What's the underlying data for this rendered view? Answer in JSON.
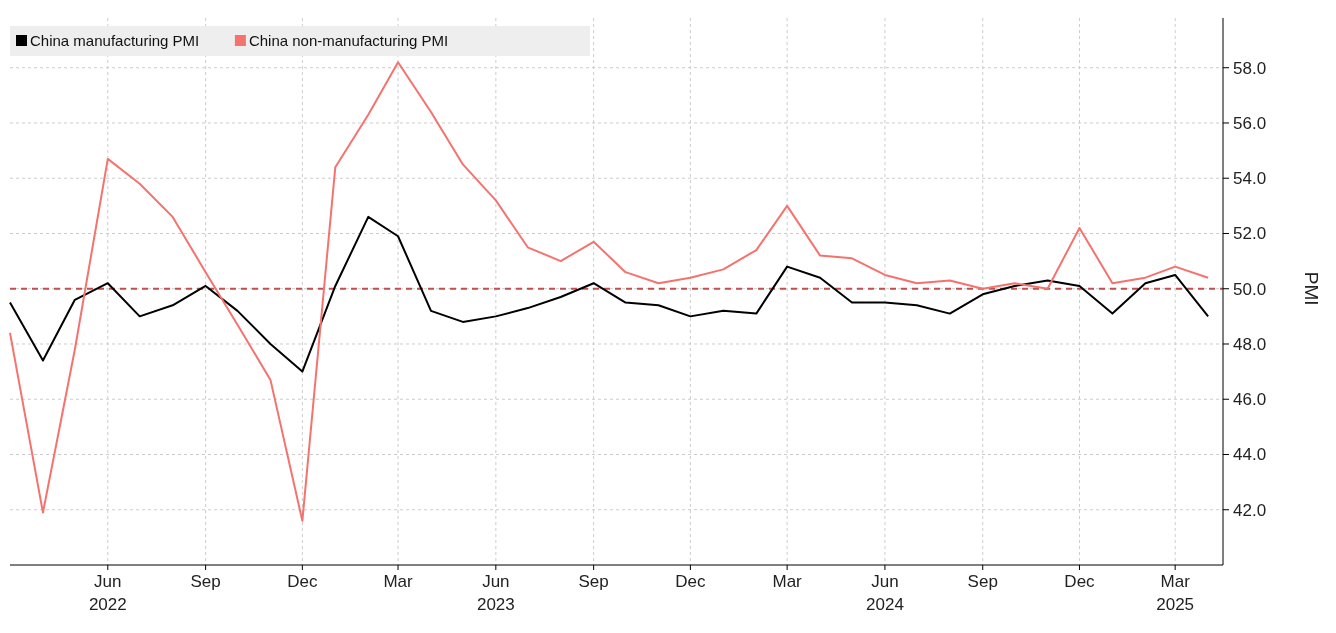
{
  "chart_data": {
    "type": "line",
    "ylabel": "PMI",
    "x": [
      "2022-03",
      "2022-04",
      "2022-05",
      "2022-06",
      "2022-07",
      "2022-08",
      "2022-09",
      "2022-10",
      "2022-11",
      "2022-12",
      "2023-01",
      "2023-02",
      "2023-03",
      "2023-04",
      "2023-05",
      "2023-06",
      "2023-07",
      "2023-08",
      "2023-09",
      "2023-10",
      "2023-11",
      "2023-12",
      "2024-01",
      "2024-02",
      "2024-03",
      "2024-04",
      "2024-05",
      "2024-06",
      "2024-07",
      "2024-08",
      "2024-09",
      "2024-10",
      "2024-11",
      "2024-12",
      "2025-01",
      "2025-02",
      "2025-03",
      "2025-04"
    ],
    "series": [
      {
        "name": "China manufacturing PMI",
        "color": "#000000",
        "values": [
          49.5,
          47.4,
          49.6,
          50.2,
          49.0,
          49.4,
          50.1,
          49.2,
          48.0,
          47.0,
          50.1,
          52.6,
          51.9,
          49.2,
          48.8,
          49.0,
          49.3,
          49.7,
          50.2,
          49.5,
          49.4,
          49.0,
          49.2,
          49.1,
          50.8,
          50.4,
          49.5,
          49.5,
          49.4,
          49.1,
          49.8,
          50.1,
          50.3,
          50.1,
          49.1,
          50.2,
          50.5,
          49.0
        ]
      },
      {
        "name": "China non-manufacturing PMI",
        "color": "#f4736e",
        "values": [
          48.4,
          41.9,
          47.8,
          54.7,
          53.8,
          52.6,
          50.6,
          48.7,
          46.7,
          41.6,
          54.4,
          56.3,
          58.2,
          56.4,
          54.5,
          53.2,
          51.5,
          51.0,
          51.7,
          50.6,
          50.2,
          50.4,
          50.7,
          51.4,
          53.0,
          51.2,
          51.1,
          50.5,
          50.2,
          50.3,
          50.0,
          50.2,
          50.0,
          52.2,
          50.2,
          50.4,
          50.8,
          50.4
        ]
      }
    ],
    "xlim": [
      "2022-03",
      "2025-04-15"
    ],
    "xticks": [
      {
        "value": "2022-06",
        "label": "Jun\n2022"
      },
      {
        "value": "2022-09",
        "label": "Sep"
      },
      {
        "value": "2022-12",
        "label": "Dec"
      },
      {
        "value": "2023-03",
        "label": "Mar"
      },
      {
        "value": "2023-06",
        "label": "Jun\n2023"
      },
      {
        "value": "2023-09",
        "label": "Sep"
      },
      {
        "value": "2023-12",
        "label": "Dec"
      },
      {
        "value": "2024-03",
        "label": "Mar"
      },
      {
        "value": "2024-06",
        "label": "Jun\n2024"
      },
      {
        "value": "2024-09",
        "label": "Sep"
      },
      {
        "value": "2024-12",
        "label": "Dec"
      },
      {
        "value": "2025-03",
        "label": "Mar\n2025"
      }
    ],
    "ylim": [
      40,
      59.8
    ],
    "yticks": [
      {
        "value": 42,
        "label": "42.0"
      },
      {
        "value": 44,
        "label": "44.0"
      },
      {
        "value": 46,
        "label": "46.0"
      },
      {
        "value": 48,
        "label": "48.0"
      },
      {
        "value": 50,
        "label": "50.0"
      },
      {
        "value": 52,
        "label": "52.0"
      },
      {
        "value": 54,
        "label": "54.0"
      },
      {
        "value": 56,
        "label": "56.0"
      },
      {
        "value": 58,
        "label": "58.0"
      }
    ],
    "ref_lines": [
      {
        "axis": "y",
        "value": 50,
        "color": "#c0504d",
        "line_style": "dashed"
      }
    ],
    "grid": true,
    "legend": "top left",
    "line_style": "solid",
    "marker": "none"
  }
}
